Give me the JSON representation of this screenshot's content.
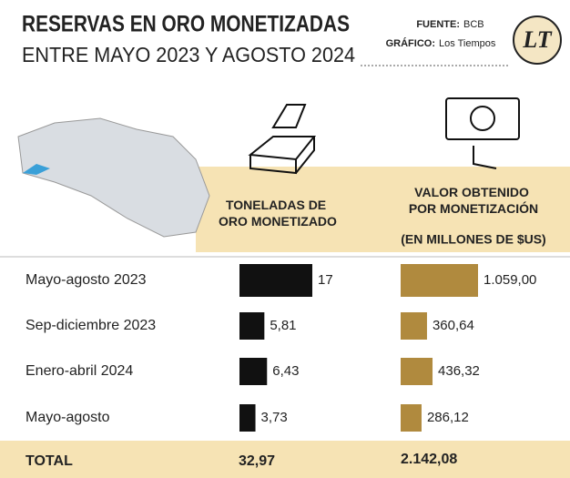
{
  "chart_data": {
    "type": "bar",
    "title": "RESERVAS EN ORO MONETIZADAS",
    "subtitle": "ENTRE MAYO 2023 Y AGOSTO 2024",
    "source_label": "FUENTE:",
    "source": "BCB",
    "credit_label": "GRÁFICO:",
    "credit": "Los Tiempos",
    "logo": "LT",
    "categories": [
      "Mayo-agosto 2023",
      "Sep-diciembre 2023",
      "Enero-abril 2024",
      "Mayo-agosto"
    ],
    "series": [
      {
        "name": "TONELADAS DE ORO MONETIZADO",
        "color": "#111111",
        "values": [
          17,
          5.81,
          6.43,
          3.73
        ],
        "value_labels": [
          "17",
          "5,81",
          "6,43",
          "3,73"
        ],
        "total": 32.97,
        "total_label": "32,97"
      },
      {
        "name": "VALOR OBTENIDO POR MONETIZACIÓN",
        "unit": "(EN MILLONES DE $US)",
        "color": "#b08a3e",
        "values": [
          1059,
          360.64,
          436.32,
          286.12
        ],
        "value_labels": [
          "1.059,00",
          "360,64",
          "436,32",
          "286,12"
        ],
        "total": 2142.08,
        "total_label": "2.142,08"
      }
    ],
    "total_name": "TOTAL"
  }
}
